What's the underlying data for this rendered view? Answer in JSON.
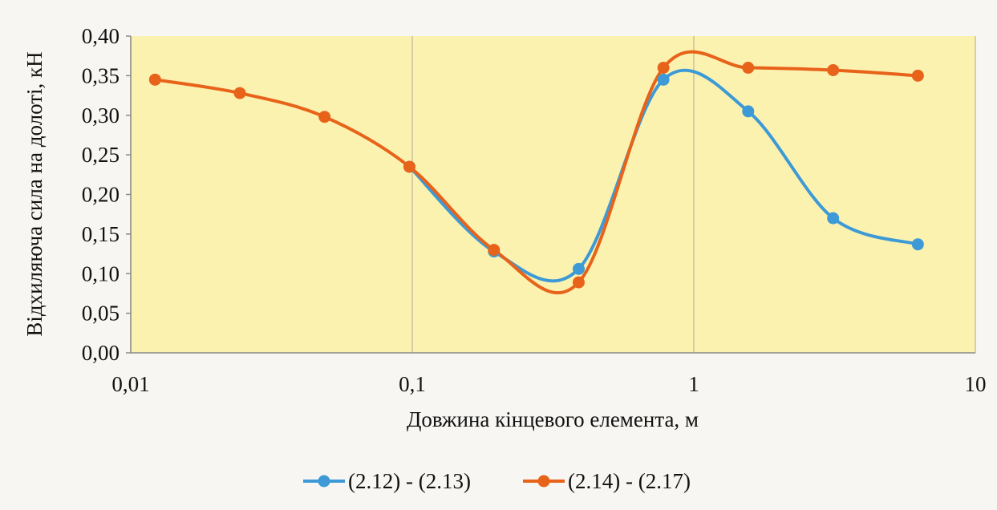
{
  "chart_data": {
    "type": "line",
    "title": "",
    "xlabel": "Довжина кінцевого елемента, м",
    "ylabel": "Відхиляюча сила на долоті, кН",
    "x_scale": "log",
    "xlim": [
      0.01,
      10
    ],
    "ylim": [
      0,
      0.4
    ],
    "x_ticks": [
      0.01,
      0.1,
      1,
      10
    ],
    "x_tick_labels": [
      "0,01",
      "0,1",
      "1",
      "10"
    ],
    "y_ticks": [
      0,
      0.05,
      0.1,
      0.15,
      0.2,
      0.25,
      0.3,
      0.35,
      0.4
    ],
    "y_tick_labels": [
      "0,00",
      "0,05",
      "0,10",
      "0,15",
      "0,20",
      "0,25",
      "0,30",
      "0,35",
      "0,40"
    ],
    "grid": "vertical",
    "legend": "bottom",
    "plot_background": "#fcf2b0",
    "series": [
      {
        "name": "(2.12) - (2.13)",
        "color": "#3d9ad6",
        "x": [
          0.0977,
          0.195,
          0.39,
          0.78,
          1.56,
          3.125,
          6.25
        ],
        "y": [
          0.235,
          0.128,
          0.106,
          0.345,
          0.305,
          0.17,
          0.137
        ]
      },
      {
        "name": "(2.14) - (2.17)",
        "color": "#e8631a",
        "x": [
          0.0122,
          0.0244,
          0.0488,
          0.0977,
          0.195,
          0.39,
          0.78,
          1.56,
          3.125,
          6.25
        ],
        "y": [
          0.345,
          0.328,
          0.298,
          0.235,
          0.13,
          0.089,
          0.36,
          0.36,
          0.357,
          0.35
        ]
      }
    ]
  }
}
